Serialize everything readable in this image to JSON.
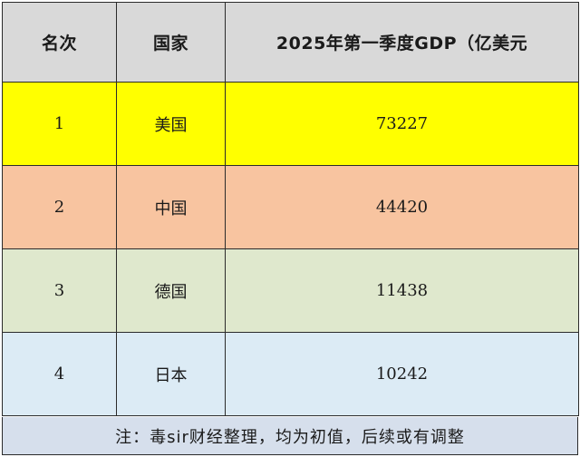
{
  "table": {
    "headers": {
      "rank": "名次",
      "country": "国家",
      "gdp": "2025年第一季度GDP（亿美元"
    },
    "rows": [
      {
        "rank": "1",
        "country": "美国",
        "gdp": "73227",
        "bg_color": "#ffff00"
      },
      {
        "rank": "2",
        "country": "中国",
        "gdp": "44420",
        "bg_color": "#f8c4a0"
      },
      {
        "rank": "3",
        "country": "德国",
        "gdp": "11438",
        "bg_color": "#dfe8cd"
      },
      {
        "rank": "4",
        "country": "日本",
        "gdp": "10242",
        "bg_color": "#dcebf5"
      }
    ],
    "header_bg_color": "#d9d9d9"
  },
  "note": {
    "text": "注：毒sir财经整理，均为初值，后续或有调整",
    "bg_color": "#d6dfec"
  }
}
